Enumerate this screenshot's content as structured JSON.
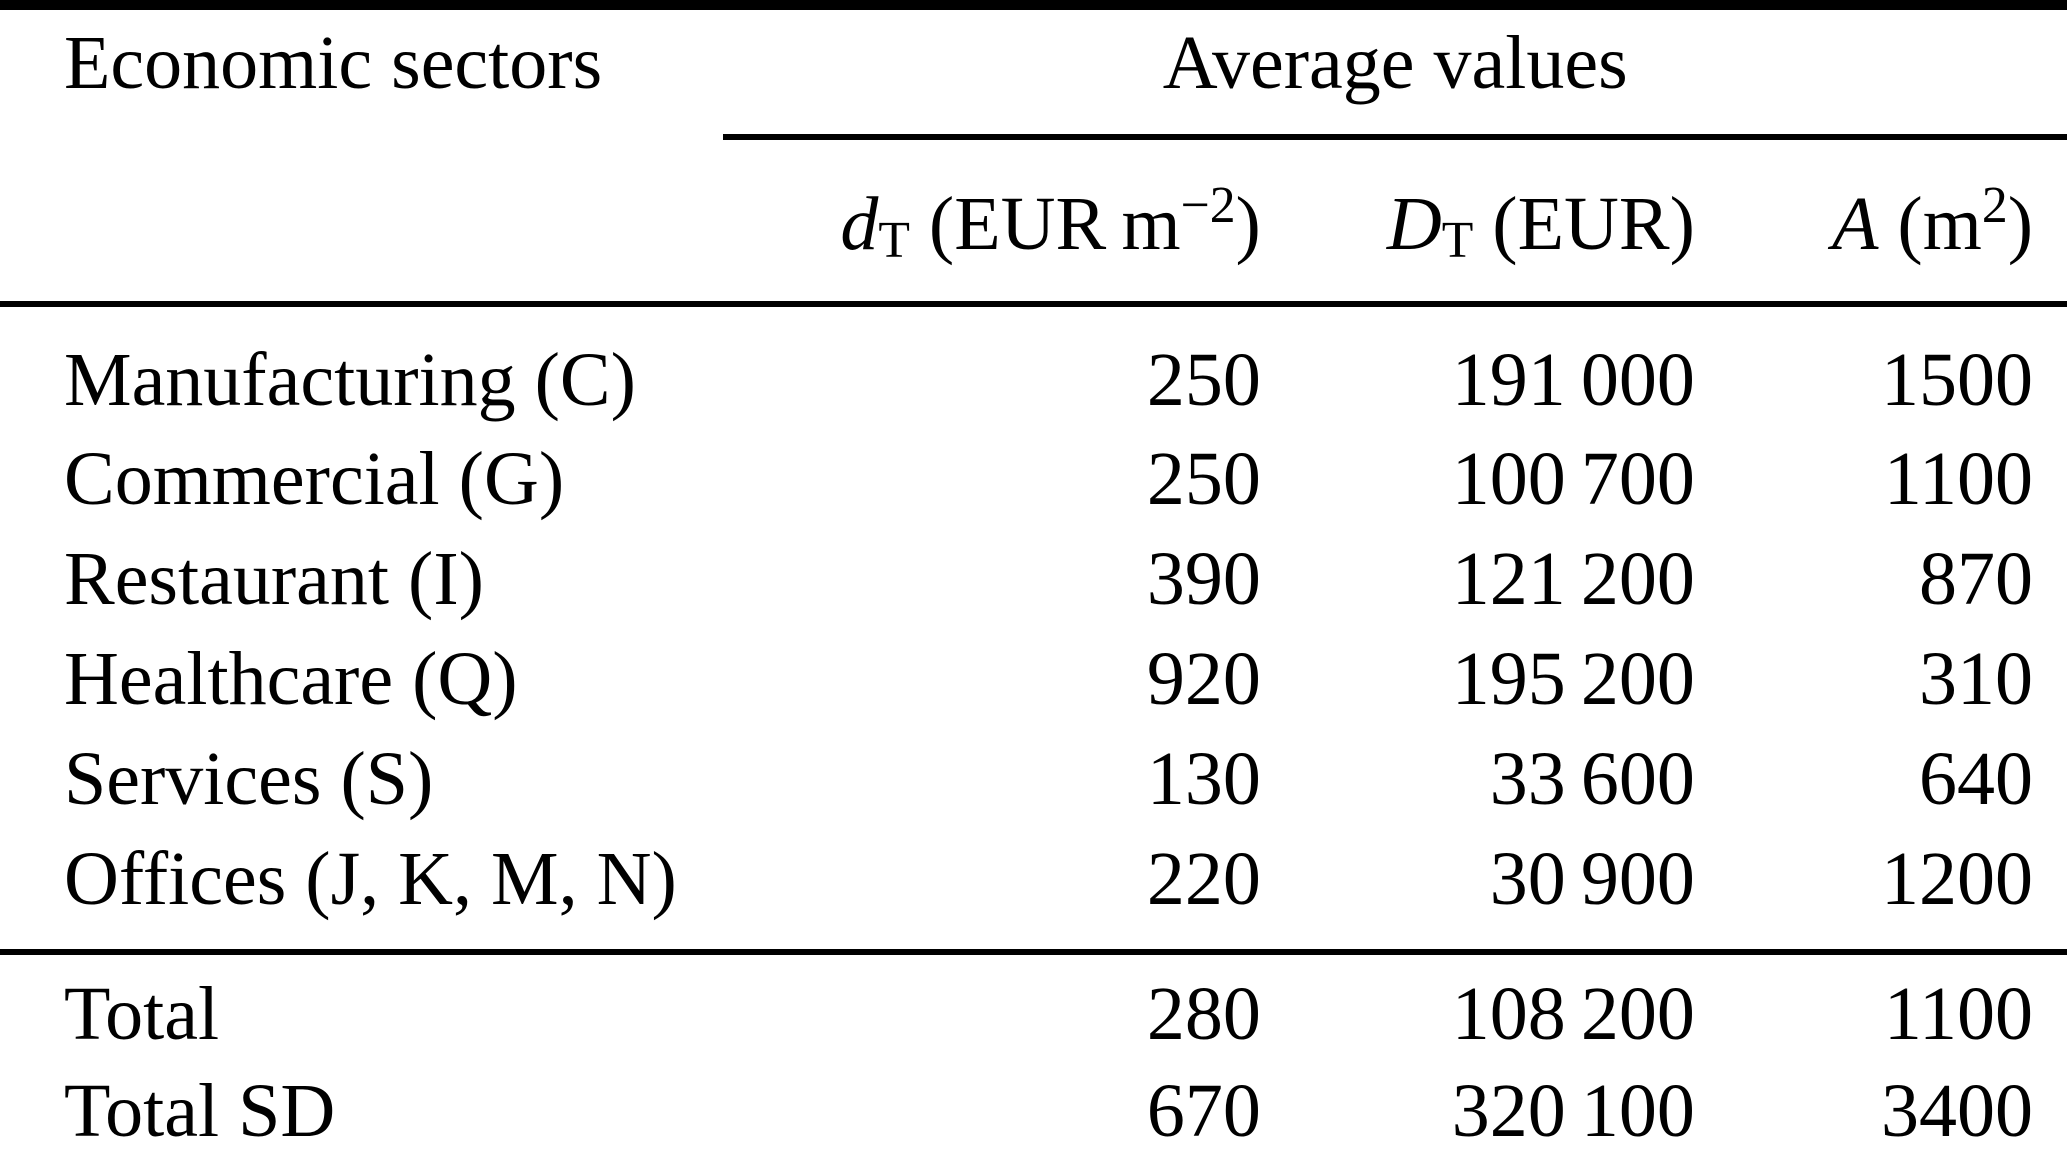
{
  "table": {
    "header": {
      "economic_sectors": "Economic sectors",
      "average_values": "Average values"
    },
    "columns": [
      {
        "name": "specific-damage",
        "symbol": "d",
        "subscript": "T",
        "unit_open": " (EUR m",
        "superscript": "−2",
        "unit_close": ")"
      },
      {
        "name": "total-damage",
        "symbol": "D",
        "subscript": "T",
        "unit_open": " (EUR)",
        "superscript": "",
        "unit_close": ""
      },
      {
        "name": "area",
        "symbol": "A",
        "subscript": "",
        "unit_open": " (m",
        "superscript": "2",
        "unit_close": ")"
      }
    ],
    "rows": [
      {
        "sector": "Manufacturing (C)",
        "dT": "250",
        "DT": "191 000",
        "A": "1500"
      },
      {
        "sector": "Commercial (G)",
        "dT": "250",
        "DT": "100 700",
        "A": "1100"
      },
      {
        "sector": "Restaurant (I)",
        "dT": "390",
        "DT": "121 200",
        "A": "870"
      },
      {
        "sector": "Healthcare (Q)",
        "dT": "920",
        "DT": "195 200",
        "A": "310"
      },
      {
        "sector": "Services (S)",
        "dT": "130",
        "DT": "33 600",
        "A": "640"
      },
      {
        "sector": "Offices (J, K, M, N)",
        "dT": "220",
        "DT": "30 900",
        "A": "1200"
      }
    ],
    "totals": [
      {
        "sector": "Total",
        "dT": "280",
        "DT": "108 200",
        "A": "1100"
      },
      {
        "sector": "Total SD",
        "dT": "670",
        "DT": "320 100",
        "A": "3400"
      }
    ],
    "colors": {
      "text": "#000000",
      "background": "#ffffff",
      "rule": "#000000"
    }
  }
}
